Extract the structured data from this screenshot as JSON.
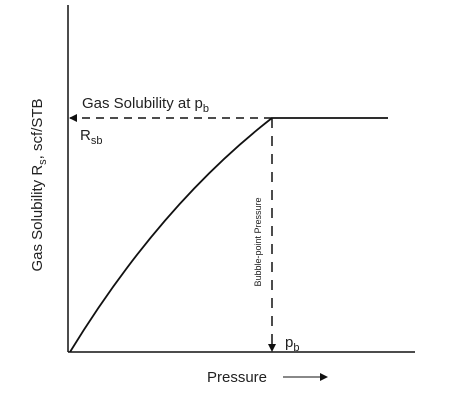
{
  "y_axis_label": {
    "main": "Gas Solubility R",
    "sub": "s",
    "rest": ", scf/STB"
  },
  "x_axis_label": "Pressure",
  "saturation_label": {
    "main": "Gas Solubility at p",
    "sub": "b"
  },
  "rsb_label": {
    "main": "R",
    "sub": "sb"
  },
  "bubble_point_label": "Bubble-point Pressure",
  "pb_label": {
    "main": "p",
    "sub": "b"
  }
}
